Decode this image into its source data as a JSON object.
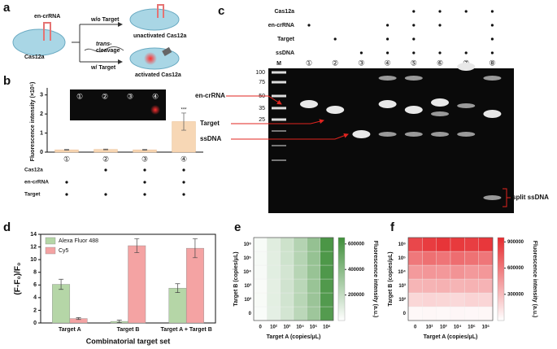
{
  "panel_a": {
    "letter": "a",
    "en_crrna": "en-crRNA",
    "cas12a": "Cas12a",
    "without": "w/o Target",
    "with": "w/ Target",
    "trans": "trans-",
    "cleavage": "cleavage",
    "unactivated": "unactivated Cas12a",
    "activated": "activated Cas12a"
  },
  "panel_c": {
    "letter": "c",
    "rows": [
      {
        "name": "Cas12a",
        "present": [
          false,
          false,
          false,
          false,
          true,
          true,
          true,
          true
        ]
      },
      {
        "name": "en-crRNA",
        "present": [
          true,
          false,
          false,
          true,
          true,
          true,
          false,
          true
        ]
      },
      {
        "name": "Target",
        "present": [
          false,
          true,
          false,
          true,
          true,
          false,
          false,
          true
        ]
      },
      {
        "name": "ssDNA",
        "present": [
          false,
          false,
          true,
          true,
          true,
          true,
          true,
          true
        ]
      }
    ],
    "marker_label": "M",
    "lanes": [
      "①",
      "②",
      "③",
      "④",
      "⑤",
      "⑥",
      "⑦",
      "⑧"
    ],
    "marker": [
      100,
      75,
      50,
      35,
      25
    ],
    "left_labels": [
      "en-crRNA",
      "Target",
      "ssDNA"
    ],
    "right_label": "split ssDNA"
  },
  "chart_data": [
    {
      "type": "bar",
      "letter": "b",
      "ylabel": "Fluorescence intensity (×10⁵)",
      "categories": [
        "①",
        "②",
        "③",
        "④"
      ],
      "values": [
        0.12,
        0.14,
        0.12,
        1.6
      ],
      "errors": [
        0.02,
        0.02,
        0.02,
        0.45
      ],
      "color": "#f7d7b5",
      "ylim": [
        0,
        3.2
      ],
      "yticks": [
        0,
        1,
        2,
        3
      ],
      "annotation": "***",
      "inset_labels": [
        "①",
        "②",
        "③",
        "④"
      ],
      "conditions": [
        {
          "name": "Cas12a",
          "present": [
            false,
            true,
            true,
            true
          ]
        },
        {
          "name": "en-crRNA",
          "present": [
            true,
            false,
            true,
            true
          ]
        },
        {
          "name": "Target",
          "present": [
            true,
            true,
            true,
            true
          ]
        }
      ]
    },
    {
      "type": "grouped_bar",
      "letter": "d",
      "ylabel": "(F-F₀)/F₀",
      "xlabel": "Combinatorial target set",
      "categories": [
        "Target A",
        "Target B",
        "Target A + Target B"
      ],
      "series": [
        {
          "name": "Alexa Fluor 488",
          "color": "#b5d6a7",
          "values": [
            6.1,
            0.25,
            5.5
          ],
          "errors": [
            0.8,
            0.2,
            0.7
          ]
        },
        {
          "name": "Cy5",
          "color": "#f4a3a3",
          "values": [
            0.7,
            12.2,
            11.8
          ],
          "errors": [
            0.15,
            1.1,
            1.5
          ]
        }
      ],
      "ylim": [
        0,
        14
      ],
      "yticks": [
        0,
        2,
        4,
        6,
        8,
        10,
        12,
        14
      ],
      "legend": "upper left"
    },
    {
      "type": "heatmap",
      "letter": "e",
      "xlabel": "Target A (copies/μL)",
      "ylabel": "Target B (copies/μL)",
      "x": [
        "0",
        "10²",
        "10³",
        "10⁴",
        "10⁵",
        "10⁶"
      ],
      "y": [
        "0",
        "10²",
        "10³",
        "10⁴",
        "10⁵",
        "10⁶"
      ],
      "values": [
        [
          20000,
          90000,
          150000,
          230000,
          330000,
          580000
        ],
        [
          25000,
          95000,
          155000,
          240000,
          340000,
          585000
        ],
        [
          22000,
          92000,
          160000,
          235000,
          345000,
          590000
        ],
        [
          28000,
          100000,
          150000,
          245000,
          350000,
          595000
        ],
        [
          30000,
          98000,
          165000,
          250000,
          355000,
          600000
        ],
        [
          26000,
          105000,
          170000,
          255000,
          360000,
          610000
        ]
      ],
      "colorbar_label": "Fluorescence intensity (a.u.)",
      "zlim": [
        0,
        650000
      ],
      "zticks": [
        200000,
        400000,
        600000
      ],
      "color_low": "#ffffff",
      "color_high": "#3f8f3a"
    },
    {
      "type": "heatmap",
      "letter": "f",
      "xlabel": "Target A (copies/μL)",
      "ylabel": "Target B (copies/μL)",
      "x": [
        "0",
        "10²",
        "10³",
        "10⁴",
        "10⁵",
        "10⁶"
      ],
      "y": [
        "0",
        "10²",
        "10³",
        "10⁴",
        "10⁵",
        "10⁶"
      ],
      "values": [
        [
          30000,
          35000,
          32000,
          38000,
          34000,
          36000
        ],
        [
          180000,
          190000,
          185000,
          175000,
          195000,
          188000
        ],
        [
          330000,
          340000,
          350000,
          335000,
          345000,
          338000
        ],
        [
          450000,
          470000,
          460000,
          480000,
          455000,
          465000
        ],
        [
          600000,
          640000,
          620000,
          650000,
          630000,
          610000
        ],
        [
          820000,
          870000,
          900000,
          880000,
          860000,
          890000
        ]
      ],
      "colorbar_label": "Fluorescence intensity (a.u.)",
      "zlim": [
        0,
        950000
      ],
      "zticks": [
        300000,
        600000,
        900000
      ],
      "color_low": "#ffffff",
      "color_high": "#e62a2e"
    }
  ]
}
